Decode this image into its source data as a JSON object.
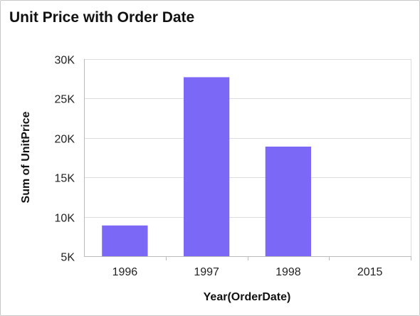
{
  "title": "Unit Price with Order Date",
  "colors": {
    "bar": "#7b68f7",
    "grid": "#dddddd",
    "axis": "#bbbbbb"
  },
  "chart_data": {
    "type": "bar",
    "title": "Unit Price with Order Date",
    "xlabel": "Year(OrderDate)",
    "ylabel": "Sum of UnitPrice",
    "categories": [
      "1996",
      "1997",
      "1998",
      "2015"
    ],
    "values": [
      8900,
      27700,
      18900,
      null
    ],
    "ylim": [
      5000,
      30000
    ],
    "yticks": [
      {
        "value": 5000,
        "label": "5K"
      },
      {
        "value": 10000,
        "label": "10K"
      },
      {
        "value": 15000,
        "label": "15K"
      },
      {
        "value": 20000,
        "label": "20K"
      },
      {
        "value": 25000,
        "label": "25K"
      },
      {
        "value": 30000,
        "label": "30K"
      }
    ],
    "grid": true,
    "legend": "none"
  }
}
